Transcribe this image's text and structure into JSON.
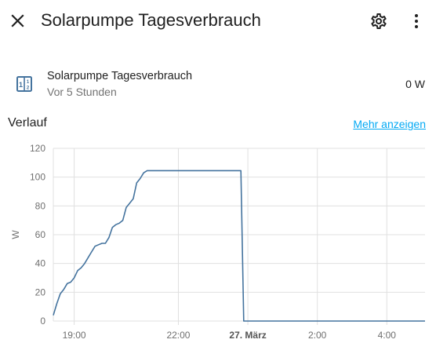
{
  "header": {
    "title": "Solarpumpe Tagesverbrauch",
    "close_icon": "close-icon",
    "settings_icon": "gear-icon",
    "menu_icon": "more-vertical-icon"
  },
  "entity": {
    "name": "Solarpumpe Tagesverbrauch",
    "last_changed": "Vor 5 Stunden",
    "state": "0 W",
    "icon": "power-meter-icon",
    "icon_color": "#44739e"
  },
  "history": {
    "title": "Verlauf",
    "show_more": "Mehr anzeigen",
    "link_color": "#03a9f4"
  },
  "chart_data": {
    "type": "line",
    "ylabel": "W",
    "ylim": [
      0,
      120
    ],
    "yticks": [
      0,
      20,
      40,
      60,
      80,
      100,
      120
    ],
    "xticks": [
      {
        "label": "19:00",
        "h": 19.0,
        "bold": false
      },
      {
        "label": "22:00",
        "h": 22.0,
        "bold": false
      },
      {
        "label": "27. März",
        "h": 24.0,
        "bold": true
      },
      {
        "label": "2:00",
        "h": 26.0,
        "bold": false
      },
      {
        "label": "4:00",
        "h": 28.0,
        "bold": false
      }
    ],
    "xlim_hours": [
      18.4,
      29.1
    ],
    "grid": true,
    "line_color": "#44739e",
    "series": [
      {
        "points": [
          [
            18.4,
            4
          ],
          [
            18.5,
            12
          ],
          [
            18.6,
            19
          ],
          [
            18.7,
            22
          ],
          [
            18.8,
            26
          ],
          [
            18.9,
            27
          ],
          [
            19.0,
            30
          ],
          [
            19.1,
            35
          ],
          [
            19.2,
            37
          ],
          [
            19.3,
            40
          ],
          [
            19.4,
            44
          ],
          [
            19.5,
            48
          ],
          [
            19.6,
            52
          ],
          [
            19.7,
            53
          ],
          [
            19.8,
            54
          ],
          [
            19.9,
            54
          ],
          [
            20.0,
            58
          ],
          [
            20.1,
            65
          ],
          [
            20.2,
            67
          ],
          [
            20.3,
            68
          ],
          [
            20.4,
            70
          ],
          [
            20.5,
            79
          ],
          [
            20.6,
            82
          ],
          [
            20.7,
            85
          ],
          [
            20.8,
            96
          ],
          [
            20.9,
            99
          ],
          [
            21.0,
            103
          ],
          [
            21.1,
            104.5
          ],
          [
            23.8,
            104.5
          ],
          [
            23.88,
            0
          ],
          [
            29.1,
            0
          ]
        ]
      }
    ]
  }
}
